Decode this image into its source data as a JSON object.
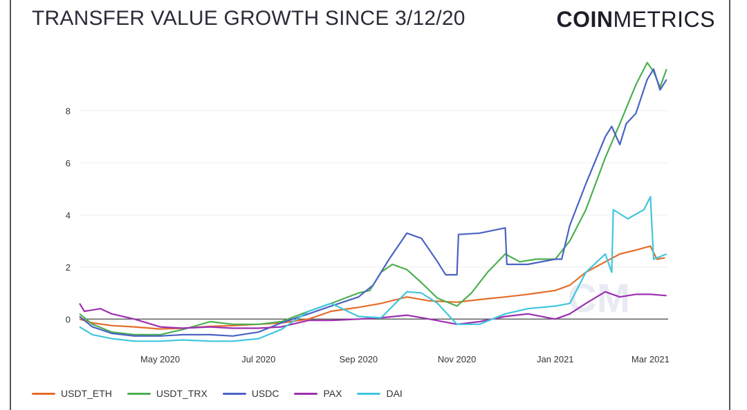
{
  "header": {
    "title": "TRANSFER VALUE GROWTH SINCE 3/12/20",
    "logo_bold": "COIN",
    "logo_light": "METRICS"
  },
  "watermark": "CM",
  "chart_data": {
    "type": "line",
    "title": "TRANSFER VALUE GROWTH SINCE 3/12/20",
    "xlabel": "",
    "ylabel": "",
    "x_range": [
      "2020-03-12",
      "2021-03-12"
    ],
    "ylim": [
      -1.0,
      10.0
    ],
    "y_ticks": [
      0,
      2,
      4,
      6,
      8
    ],
    "x_ticks": [
      {
        "date": "2020-05-01",
        "label": "May 2020"
      },
      {
        "date": "2020-07-01",
        "label": "Jul 2020"
      },
      {
        "date": "2020-09-01",
        "label": "Sep 2020"
      },
      {
        "date": "2020-11-01",
        "label": "Nov 2020"
      },
      {
        "date": "2021-01-01",
        "label": "Jan 2021"
      },
      {
        "date": "2021-03-01",
        "label": "Mar 2021"
      }
    ],
    "grid": "horizontal",
    "legend_position": "bottom-left",
    "series": [
      {
        "name": "USDT_ETH",
        "color": "#e46c2a",
        "points": [
          [
            "2020-03-12",
            0.0
          ],
          [
            "2020-03-20",
            -0.15
          ],
          [
            "2020-04-01",
            -0.25
          ],
          [
            "2020-04-15",
            -0.3
          ],
          [
            "2020-05-01",
            -0.38
          ],
          [
            "2020-05-15",
            -0.35
          ],
          [
            "2020-06-01",
            -0.28
          ],
          [
            "2020-06-15",
            -0.25
          ],
          [
            "2020-07-01",
            -0.2
          ],
          [
            "2020-07-15",
            -0.15
          ],
          [
            "2020-08-01",
            0.0
          ],
          [
            "2020-08-15",
            0.3
          ],
          [
            "2020-09-01",
            0.45
          ],
          [
            "2020-09-15",
            0.6
          ],
          [
            "2020-10-01",
            0.85
          ],
          [
            "2020-10-15",
            0.7
          ],
          [
            "2020-11-01",
            0.65
          ],
          [
            "2020-11-15",
            0.75
          ],
          [
            "2020-12-01",
            0.85
          ],
          [
            "2020-12-15",
            0.95
          ],
          [
            "2021-01-01",
            1.1
          ],
          [
            "2021-01-10",
            1.3
          ],
          [
            "2021-01-20",
            1.8
          ],
          [
            "2021-02-01",
            2.2
          ],
          [
            "2021-02-10",
            2.5
          ],
          [
            "2021-02-20",
            2.65
          ],
          [
            "2021-03-01",
            2.8
          ],
          [
            "2021-03-05",
            2.3
          ],
          [
            "2021-03-10",
            2.35
          ]
        ]
      },
      {
        "name": "USDT_TRX",
        "color": "#4caf50",
        "points": [
          [
            "2020-03-12",
            0.2
          ],
          [
            "2020-03-20",
            -0.2
          ],
          [
            "2020-04-01",
            -0.5
          ],
          [
            "2020-04-15",
            -0.6
          ],
          [
            "2020-05-01",
            -0.6
          ],
          [
            "2020-05-15",
            -0.4
          ],
          [
            "2020-06-01",
            -0.1
          ],
          [
            "2020-06-15",
            -0.2
          ],
          [
            "2020-07-01",
            -0.2
          ],
          [
            "2020-07-15",
            -0.1
          ],
          [
            "2020-08-01",
            0.3
          ],
          [
            "2020-08-15",
            0.6
          ],
          [
            "2020-09-01",
            1.0
          ],
          [
            "2020-09-08",
            1.1
          ],
          [
            "2020-09-15",
            1.8
          ],
          [
            "2020-09-22",
            2.1
          ],
          [
            "2020-10-01",
            1.9
          ],
          [
            "2020-10-10",
            1.4
          ],
          [
            "2020-10-20",
            0.8
          ],
          [
            "2020-11-01",
            0.5
          ],
          [
            "2020-11-10",
            1.0
          ],
          [
            "2020-11-20",
            1.8
          ],
          [
            "2020-12-01",
            2.5
          ],
          [
            "2020-12-10",
            2.2
          ],
          [
            "2020-12-20",
            2.3
          ],
          [
            "2021-01-01",
            2.3
          ],
          [
            "2021-01-10",
            3.0
          ],
          [
            "2021-01-20",
            4.2
          ],
          [
            "2021-02-01",
            6.2
          ],
          [
            "2021-02-10",
            7.5
          ],
          [
            "2021-02-20",
            9.0
          ],
          [
            "2021-02-27",
            9.85
          ],
          [
            "2021-03-03",
            9.5
          ],
          [
            "2021-03-07",
            8.9
          ],
          [
            "2021-03-11",
            9.6
          ]
        ]
      },
      {
        "name": "USDC",
        "color": "#4a62c3",
        "points": [
          [
            "2020-03-12",
            0.1
          ],
          [
            "2020-03-20",
            -0.3
          ],
          [
            "2020-04-01",
            -0.55
          ],
          [
            "2020-04-15",
            -0.65
          ],
          [
            "2020-05-01",
            -0.65
          ],
          [
            "2020-05-15",
            -0.6
          ],
          [
            "2020-06-01",
            -0.6
          ],
          [
            "2020-06-15",
            -0.65
          ],
          [
            "2020-07-01",
            -0.5
          ],
          [
            "2020-07-15",
            -0.15
          ],
          [
            "2020-08-01",
            0.2
          ],
          [
            "2020-08-15",
            0.5
          ],
          [
            "2020-09-01",
            0.85
          ],
          [
            "2020-09-10",
            1.3
          ],
          [
            "2020-09-20",
            2.3
          ],
          [
            "2020-10-01",
            3.3
          ],
          [
            "2020-10-10",
            3.1
          ],
          [
            "2020-10-20",
            2.2
          ],
          [
            "2020-10-25",
            1.7
          ],
          [
            "2020-11-01",
            1.7
          ],
          [
            "2020-11-02",
            3.25
          ],
          [
            "2020-11-15",
            3.3
          ],
          [
            "2020-12-01",
            3.5
          ],
          [
            "2020-12-02",
            2.1
          ],
          [
            "2020-12-15",
            2.1
          ],
          [
            "2021-01-01",
            2.3
          ],
          [
            "2021-01-05",
            2.3
          ],
          [
            "2021-01-10",
            3.6
          ],
          [
            "2021-01-20",
            5.2
          ],
          [
            "2021-02-01",
            7.0
          ],
          [
            "2021-02-05",
            7.4
          ],
          [
            "2021-02-10",
            6.7
          ],
          [
            "2021-02-14",
            7.5
          ],
          [
            "2021-02-20",
            7.9
          ],
          [
            "2021-02-27",
            9.2
          ],
          [
            "2021-03-03",
            9.6
          ],
          [
            "2021-03-07",
            8.8
          ],
          [
            "2021-03-11",
            9.2
          ]
        ]
      },
      {
        "name": "PAX",
        "color": "#9c2fb0",
        "points": [
          [
            "2020-03-12",
            0.6
          ],
          [
            "2020-03-15",
            0.3
          ],
          [
            "2020-03-25",
            0.4
          ],
          [
            "2020-04-01",
            0.2
          ],
          [
            "2020-04-15",
            0.0
          ],
          [
            "2020-05-01",
            -0.3
          ],
          [
            "2020-05-15",
            -0.35
          ],
          [
            "2020-06-01",
            -0.3
          ],
          [
            "2020-06-15",
            -0.35
          ],
          [
            "2020-07-01",
            -0.35
          ],
          [
            "2020-07-15",
            -0.3
          ],
          [
            "2020-08-01",
            -0.05
          ],
          [
            "2020-08-15",
            -0.05
          ],
          [
            "2020-09-01",
            0.0
          ],
          [
            "2020-09-15",
            0.05
          ],
          [
            "2020-10-01",
            0.15
          ],
          [
            "2020-10-15",
            0.0
          ],
          [
            "2020-11-01",
            -0.2
          ],
          [
            "2020-11-15",
            -0.1
          ],
          [
            "2020-12-01",
            0.1
          ],
          [
            "2020-12-15",
            0.2
          ],
          [
            "2021-01-01",
            0.0
          ],
          [
            "2021-01-10",
            0.2
          ],
          [
            "2021-01-20",
            0.6
          ],
          [
            "2021-02-01",
            1.05
          ],
          [
            "2021-02-10",
            0.85
          ],
          [
            "2021-02-20",
            0.95
          ],
          [
            "2021-03-01",
            0.95
          ],
          [
            "2021-03-11",
            0.9
          ]
        ]
      },
      {
        "name": "DAI",
        "color": "#3fc6de",
        "points": [
          [
            "2020-03-12",
            -0.3
          ],
          [
            "2020-03-20",
            -0.6
          ],
          [
            "2020-04-01",
            -0.75
          ],
          [
            "2020-04-15",
            -0.85
          ],
          [
            "2020-05-01",
            -0.85
          ],
          [
            "2020-05-15",
            -0.8
          ],
          [
            "2020-06-01",
            -0.85
          ],
          [
            "2020-06-15",
            -0.85
          ],
          [
            "2020-07-01",
            -0.75
          ],
          [
            "2020-07-15",
            -0.4
          ],
          [
            "2020-08-01",
            0.3
          ],
          [
            "2020-08-15",
            0.6
          ],
          [
            "2020-09-01",
            0.1
          ],
          [
            "2020-09-15",
            0.05
          ],
          [
            "2020-10-01",
            1.05
          ],
          [
            "2020-10-10",
            1.0
          ],
          [
            "2020-10-20",
            0.6
          ],
          [
            "2020-11-01",
            -0.2
          ],
          [
            "2020-11-15",
            -0.2
          ],
          [
            "2020-12-01",
            0.2
          ],
          [
            "2020-12-15",
            0.4
          ],
          [
            "2021-01-01",
            0.5
          ],
          [
            "2021-01-10",
            0.6
          ],
          [
            "2021-01-20",
            1.8
          ],
          [
            "2021-02-01",
            2.5
          ],
          [
            "2021-02-05",
            1.8
          ],
          [
            "2021-02-06",
            4.2
          ],
          [
            "2021-02-15",
            3.85
          ],
          [
            "2021-02-25",
            4.2
          ],
          [
            "2021-03-01",
            4.7
          ],
          [
            "2021-03-03",
            2.3
          ],
          [
            "2021-03-11",
            2.5
          ]
        ]
      }
    ]
  }
}
